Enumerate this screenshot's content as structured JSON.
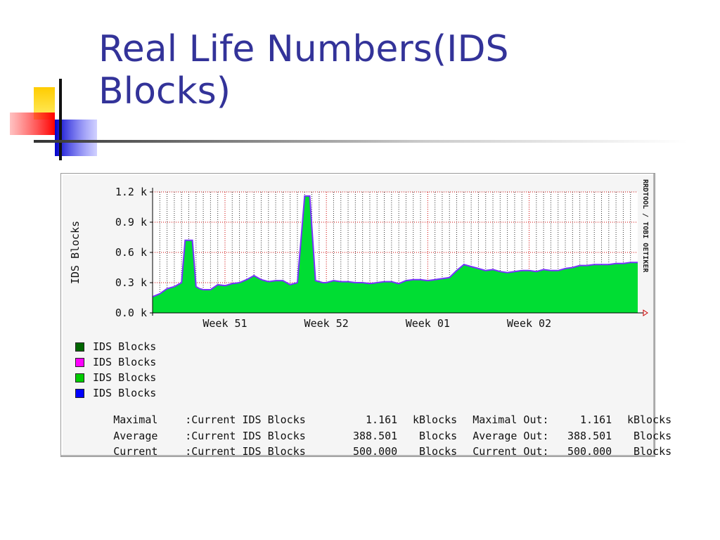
{
  "slide": {
    "title_lines": [
      "Real Life Numbers(IDS",
      "Blocks)"
    ]
  },
  "colors": {
    "title": "#333399",
    "area_fill": "#00dd33",
    "area_line": "#7733ff",
    "grid_minor": "#000000",
    "grid_major": "#cc0000"
  },
  "chart_data": {
    "type": "area",
    "title": "",
    "ylabel": "IDS Blocks",
    "ylim": [
      0,
      1.2
    ],
    "y_unit": "k",
    "yticks": [
      "0.0 k",
      "0.3 k",
      "0.6 k",
      "0.9 k",
      "1.2 k"
    ],
    "yticks_values": [
      0,
      0.3,
      0.6,
      0.9,
      1.2
    ],
    "x_tick_labels": [
      "Week 51",
      "Week 52",
      "Week 01",
      "Week 02"
    ],
    "x_tick_days": [
      10,
      24,
      38,
      52
    ],
    "xlim_days": [
      0,
      67
    ],
    "side_label": "RRDTOOL / TOBI OETIKER",
    "grid": true,
    "series": [
      {
        "name": "IDS Blocks",
        "x_days": [
          0,
          1,
          2,
          3,
          4,
          4.5,
          5.5,
          6,
          6.5,
          7,
          8,
          9,
          10,
          11,
          12,
          13,
          14,
          15,
          16,
          17,
          18,
          19,
          20,
          21,
          21.3,
          21.7,
          22.5,
          23.5,
          24,
          25,
          26,
          27,
          28,
          29,
          30,
          31,
          32,
          33,
          34,
          35,
          36,
          37,
          38,
          39,
          40,
          41,
          42,
          43,
          44,
          45,
          46,
          47,
          48,
          49,
          50,
          51,
          52,
          53,
          54,
          55,
          56,
          57,
          58,
          59,
          60,
          61,
          62,
          63,
          64,
          65,
          66,
          67
        ],
        "y_k": [
          0.16,
          0.19,
          0.24,
          0.26,
          0.3,
          0.72,
          0.72,
          0.26,
          0.24,
          0.23,
          0.23,
          0.28,
          0.27,
          0.29,
          0.3,
          0.33,
          0.37,
          0.33,
          0.31,
          0.32,
          0.32,
          0.28,
          0.3,
          1.16,
          1.16,
          1.16,
          0.32,
          0.3,
          0.3,
          0.32,
          0.31,
          0.31,
          0.3,
          0.3,
          0.29,
          0.3,
          0.31,
          0.31,
          0.29,
          0.32,
          0.33,
          0.33,
          0.32,
          0.33,
          0.34,
          0.35,
          0.42,
          0.48,
          0.46,
          0.44,
          0.42,
          0.43,
          0.41,
          0.4,
          0.41,
          0.42,
          0.42,
          0.41,
          0.43,
          0.42,
          0.42,
          0.44,
          0.45,
          0.47,
          0.47,
          0.48,
          0.48,
          0.48,
          0.49,
          0.49,
          0.5,
          0.5
        ]
      }
    ]
  },
  "legend": [
    {
      "label": "IDS Blocks",
      "color": "#006600"
    },
    {
      "label": "IDS Blocks",
      "color": "#ff00ff"
    },
    {
      "label": "IDS Blocks",
      "color": "#00cc00"
    },
    {
      "label": "IDS Blocks",
      "color": "#0000ff"
    }
  ],
  "stats": [
    {
      "name": "Maximal",
      "desc": ":Current IDS Blocks",
      "in_value": "1.161",
      "in_unit": "kBlocks",
      "out_label": "Maximal Out:",
      "out_value": "1.161",
      "out_unit": "kBlocks"
    },
    {
      "name": "Average",
      "desc": ":Current IDS Blocks",
      "in_value": "388.501",
      "in_unit": "Blocks",
      "out_label": "Average Out:",
      "out_value": "388.501",
      "out_unit": "Blocks"
    },
    {
      "name": "Current",
      "desc": ":Current IDS Blocks",
      "in_value": "500.000",
      "in_unit": "Blocks",
      "out_label": "Current Out:",
      "out_value": "500.000",
      "out_unit": "Blocks"
    }
  ]
}
